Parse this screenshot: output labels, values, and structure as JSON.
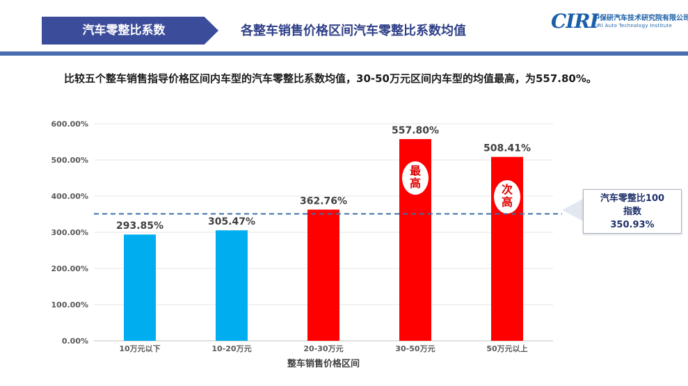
{
  "header": {
    "section_tag": "汽车零整比系数",
    "title": "各整车销售价格区间汽车零整比系数均值",
    "logo_mark": "CIRI",
    "logo_cn": "中保研汽车技术研究院有限公司",
    "logo_en": "CIRI Auto Technology Institute"
  },
  "intro_text": "比较五个整车销售指导价格区间内车型的汽车零整比系数均值，30-50万元区间内车型的均值最高，为557.80%。",
  "callout": {
    "line1": "汽车零整比100",
    "line2": "指数",
    "value": "350.93%"
  },
  "colors": {
    "blue_bar": "#00aeef",
    "red_bar": "#ff0000",
    "reference_line": "#3a6fa8",
    "brand": "#3a4c9a"
  },
  "chart_data": {
    "type": "bar",
    "categories": [
      "10万元以下",
      "10-20万元",
      "20-30万元",
      "30-50万元",
      "50万元以上"
    ],
    "values": [
      293.85,
      305.47,
      362.76,
      557.8,
      508.41
    ],
    "value_labels": [
      "293.85%",
      "305.47%",
      "362.76%",
      "557.80%",
      "508.41%"
    ],
    "bar_colors": [
      "#00aeef",
      "#00aeef",
      "#ff0000",
      "#ff0000",
      "#ff0000"
    ],
    "badges": [
      {
        "index": 3,
        "text": [
          "最",
          "高"
        ]
      },
      {
        "index": 4,
        "text": [
          "次",
          "高"
        ]
      }
    ],
    "reference_value": 350.93,
    "xlabel": "整车销售价格区间",
    "ylabel": "",
    "ylim": [
      0,
      600
    ],
    "yticks": [
      "0.00%",
      "100.00%",
      "200.00%",
      "300.00%",
      "400.00%",
      "500.00%",
      "600.00%"
    ],
    "ytick_values": [
      0,
      100,
      200,
      300,
      400,
      500,
      600
    ],
    "grid": true
  }
}
